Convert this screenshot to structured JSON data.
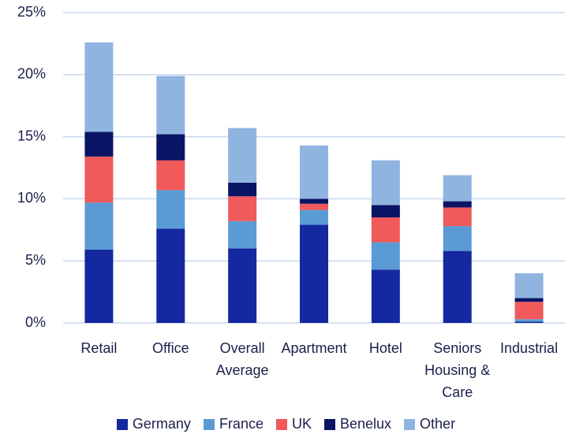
{
  "chart_data": {
    "type": "stacked_bar",
    "categories": [
      "Retail",
      "Office",
      "Overall Average",
      "Apartment",
      "Hotel",
      "Seniors Housing & Care",
      "Industrial"
    ],
    "series": [
      {
        "name": "Germany",
        "color": "#1428a0",
        "values": [
          5.9,
          7.6,
          6.0,
          7.9,
          4.3,
          5.8,
          0.1
        ]
      },
      {
        "name": "France",
        "color": "#5b9bd5",
        "values": [
          3.8,
          3.1,
          2.2,
          1.2,
          2.2,
          2.0,
          0.2
        ]
      },
      {
        "name": "UK",
        "color": "#f05a5a",
        "values": [
          3.7,
          2.4,
          2.0,
          0.5,
          2.0,
          1.5,
          1.4
        ]
      },
      {
        "name": "Benelux",
        "color": "#0a1464",
        "values": [
          2.0,
          2.1,
          1.1,
          0.4,
          1.0,
          0.5,
          0.3
        ]
      },
      {
        "name": "Other",
        "color": "#8fb4e0",
        "values": [
          7.2,
          4.7,
          4.4,
          4.3,
          3.6,
          2.1,
          2.0
        ]
      }
    ],
    "ylim": [
      0,
      25
    ],
    "yticks": [
      {
        "value": 0,
        "label": "0%"
      },
      {
        "value": 5,
        "label": "5%"
      },
      {
        "value": 10,
        "label": "10%"
      },
      {
        "value": 15,
        "label": "15%"
      },
      {
        "value": 20,
        "label": "20%"
      },
      {
        "value": 25,
        "label": "25%"
      }
    ],
    "grid": true
  }
}
